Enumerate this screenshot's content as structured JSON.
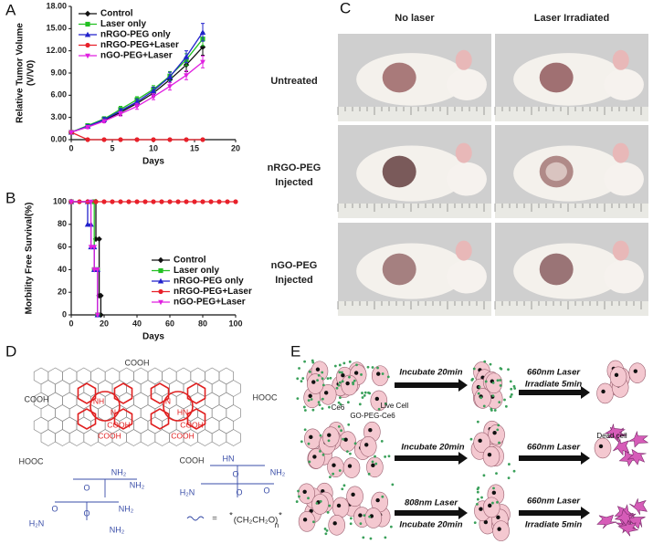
{
  "panel_letters": [
    "A",
    "B",
    "C",
    "D",
    "E"
  ],
  "chart_data": [
    {
      "type": "line",
      "xlabel": "Days",
      "ylabel": [
        "Relative Tumor Volume",
        "(V/V0)"
      ],
      "xlim": [
        0,
        20
      ],
      "xticks": [
        0,
        5,
        10,
        15,
        20
      ],
      "ylim": [
        0,
        18
      ],
      "yticks": [
        {
          "value": 0,
          "label": "0.00"
        },
        {
          "value": 3,
          "label": "3.00"
        },
        {
          "value": 6,
          "label": "6.00"
        },
        {
          "value": 9,
          "label": "9.00"
        },
        {
          "value": 12,
          "label": "12.00"
        },
        {
          "value": 15,
          "label": "15.00"
        },
        {
          "value": 18,
          "label": "18.00"
        }
      ],
      "legend": "upper left",
      "series": [
        {
          "name": "Control",
          "color": "#111111",
          "marker": "diamond",
          "x": [
            0,
            2,
            4,
            6,
            8,
            10,
            12,
            14,
            16
          ],
          "values": [
            1,
            1.8,
            2.6,
            3.7,
            4.9,
            6.3,
            8.1,
            10.1,
            12.5
          ],
          "errors": [
            0,
            0.2,
            0.3,
            0.4,
            0.4,
            0.5,
            0.7,
            0.9,
            1.1
          ]
        },
        {
          "name": "Laser only",
          "color": "#22c022",
          "marker": "square",
          "x": [
            0,
            2,
            4,
            6,
            8,
            10,
            12,
            14,
            16
          ],
          "values": [
            1,
            1.9,
            2.8,
            4.1,
            5.4,
            6.8,
            8.6,
            10.8,
            13.6
          ],
          "errors": [
            0,
            0.2,
            0.3,
            0.4,
            0.4,
            0.5,
            0.6,
            0.8,
            0.9
          ]
        },
        {
          "name": "nRGO-PEG only",
          "color": "#2222cc",
          "marker": "triangle",
          "x": [
            0,
            2,
            4,
            6,
            8,
            10,
            12,
            14,
            16
          ],
          "values": [
            1,
            1.8,
            2.7,
            3.9,
            5.1,
            6.6,
            8.5,
            11.2,
            14.5
          ],
          "errors": [
            0,
            0.2,
            0.3,
            0.3,
            0.4,
            0.5,
            0.6,
            0.8,
            1.2
          ]
        },
        {
          "name": "nRGO-PEG+Laser",
          "color": "#e8202a",
          "marker": "circle",
          "x": [
            0,
            2,
            4,
            6,
            8,
            10,
            12,
            14,
            16
          ],
          "values": [
            1,
            0,
            0,
            0,
            0,
            0,
            0,
            0,
            0
          ],
          "errors": [
            0,
            0,
            0,
            0,
            0,
            0,
            0,
            0,
            0
          ]
        },
        {
          "name": "nGO-PEG+Laser",
          "color": "#e020e0",
          "marker": "star",
          "x": [
            0,
            2,
            4,
            6,
            8,
            10,
            12,
            14,
            16
          ],
          "values": [
            1,
            1.7,
            2.5,
            3.5,
            4.5,
            5.8,
            7.2,
            8.7,
            10.5
          ],
          "errors": [
            0,
            0.2,
            0.2,
            0.3,
            0.4,
            0.4,
            0.5,
            0.6,
            0.8
          ]
        }
      ]
    },
    {
      "type": "line",
      "xlabel": "Days",
      "ylabel": [
        "Morbility Free Survival(%)"
      ],
      "xlim": [
        0,
        100
      ],
      "xticks": [
        0,
        20,
        40,
        60,
        80,
        100
      ],
      "ylim": [
        0,
        100
      ],
      "yticks": [
        0,
        20,
        40,
        60,
        80,
        100
      ],
      "legend": "lower right",
      "series": [
        {
          "name": "Control",
          "color": "#111111",
          "marker": "diamond",
          "x": [
            0,
            15,
            15,
            17,
            17,
            18,
            18
          ],
          "values": [
            100,
            100,
            67,
            67,
            17,
            17,
            0
          ]
        },
        {
          "name": "Laser only",
          "color": "#22c022",
          "marker": "square",
          "x": [
            0,
            14,
            14,
            16,
            16
          ],
          "values": [
            100,
            100,
            40,
            40,
            0
          ]
        },
        {
          "name": "nRGO-PEG only",
          "color": "#2222cc",
          "marker": "triangle",
          "x": [
            0,
            10,
            10,
            12,
            12,
            14,
            14,
            16,
            16
          ],
          "values": [
            100,
            100,
            80,
            80,
            60,
            60,
            40,
            40,
            0
          ]
        },
        {
          "name": "nRGO-PEG+Laser",
          "color": "#e8202a",
          "marker": "circle",
          "x": [
            0,
            5,
            10,
            15,
            20,
            25,
            30,
            35,
            40,
            45,
            50,
            55,
            60,
            65,
            70,
            75,
            80,
            85,
            90,
            95,
            100
          ],
          "values": [
            100,
            100,
            100,
            100,
            100,
            100,
            100,
            100,
            100,
            100,
            100,
            100,
            100,
            100,
            100,
            100,
            100,
            100,
            100,
            100,
            100
          ]
        },
        {
          "name": "nGO-PEG+Laser",
          "color": "#e020e0",
          "marker": "star",
          "x": [
            0,
            12,
            12,
            14,
            14,
            16,
            16
          ],
          "values": [
            100,
            100,
            60,
            60,
            40,
            40,
            0
          ]
        }
      ]
    }
  ],
  "photos": {
    "columns": [
      "No laser",
      "Laser Irradiated"
    ],
    "rows": [
      [
        "Untreated"
      ],
      [
        "nRGO-PEG",
        "Injected"
      ],
      [
        "nGO-PEG",
        "Injected"
      ]
    ]
  },
  "structure": {
    "carboxyl_labels": [
      "COOH",
      "COOH",
      "HOOC",
      "HOOC",
      "COOH"
    ],
    "porphyrin_labels": [
      "NH",
      "N",
      "N",
      "HN",
      "COOH",
      "COOH",
      "COOH",
      "COOH"
    ],
    "peg_labels": [
      "O",
      "NH₂",
      "NH₂",
      "O",
      "H₂N",
      "O",
      "NH₂",
      "NH₂",
      "HN",
      "O",
      "O",
      "NH₂",
      "H₂N",
      "O"
    ],
    "peg_formula": [
      "=",
      "*",
      "(CH₂CH₂O)",
      "n",
      "*"
    ]
  },
  "scheme": {
    "labels": [
      "Incubate 20min",
      "660nm Laser",
      "Irradiate 5min",
      "Ce6",
      "Live Cell",
      "GO-PEG-Ce6",
      "Incubate 20min",
      "660nm Laser",
      "Dead cell",
      "808nm Laser",
      "Incubate 20min",
      "660nm Laser",
      "Irradiate 5min"
    ]
  }
}
